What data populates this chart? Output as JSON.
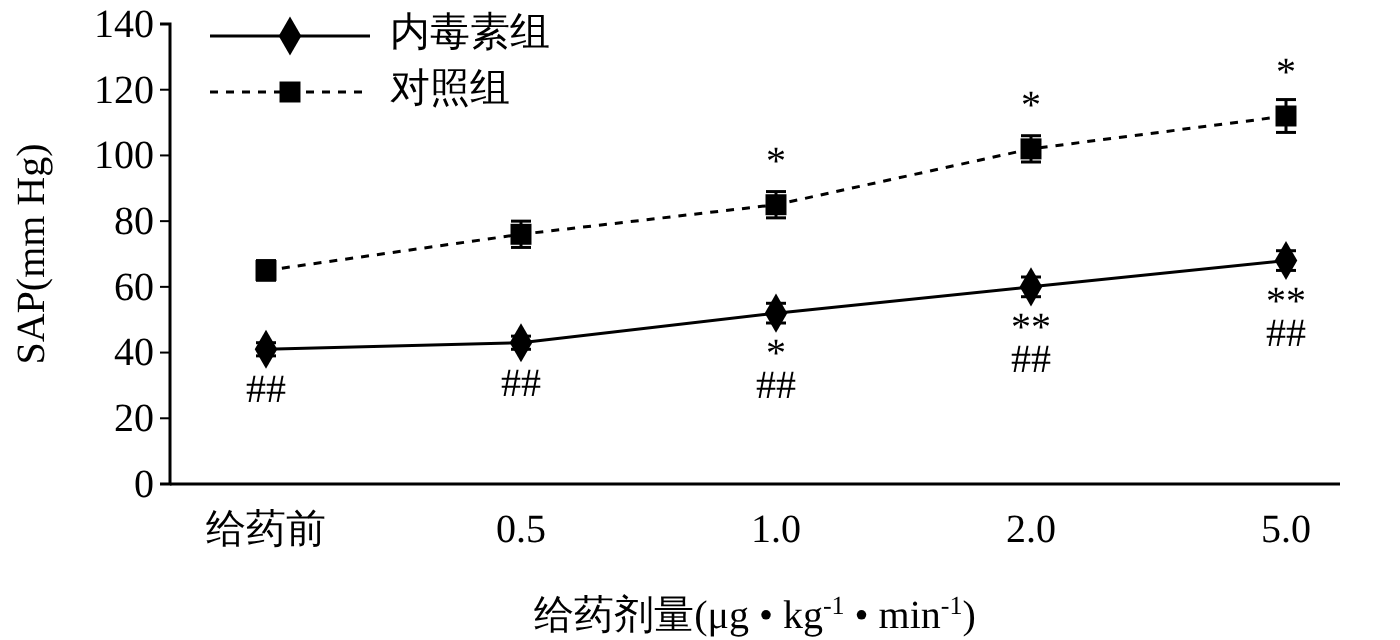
{
  "chart_data": {
    "type": "line",
    "xlabel": "给药剂量(μg • kg$^{-1}$ • min$^{-1}$)",
    "ylabel": "SAP(mm Hg)",
    "categories": [
      "给药前",
      "0.5",
      "1.0",
      "2.0",
      "5.0"
    ],
    "series": [
      {
        "name": "内毒素组",
        "color": "#000000",
        "values": [
          41,
          43,
          52,
          60,
          68
        ],
        "errors": [
          2,
          2,
          3,
          3,
          3
        ],
        "marker": "diamond",
        "line_style": "solid"
      },
      {
        "name": "对照组",
        "color": "#000000",
        "values": [
          65,
          76,
          85,
          102,
          112
        ],
        "errors": [
          3,
          4,
          4,
          4,
          5
        ],
        "marker": "square",
        "line_style": "dashed"
      }
    ],
    "ylim": [
      0,
      140
    ],
    "yticks": [
      0,
      20,
      40,
      60,
      80,
      100,
      120,
      140
    ],
    "grid": false,
    "legend": "top left",
    "annotations": [
      {
        "text": "##",
        "x": "给药前",
        "y": 41
      },
      {
        "text": "##",
        "x": "0.5",
        "y": 43
      },
      {
        "text": "*",
        "x": "1.0",
        "y": 52
      },
      {
        "text": "##",
        "x": "1.0",
        "y": 52
      },
      {
        "text": "**",
        "x": "2.0",
        "y": 60
      },
      {
        "text": "##",
        "x": "2.0",
        "y": 60
      },
      {
        "text": "**",
        "x": "5.0",
        "y": 68
      },
      {
        "text": "##",
        "x": "5.0",
        "y": 68
      },
      {
        "text": "*",
        "x": "1.0",
        "y": 85
      },
      {
        "text": "*",
        "x": "2.0",
        "y": 102
      },
      {
        "text": "*",
        "x": "5.0",
        "y": 112
      }
    ]
  }
}
